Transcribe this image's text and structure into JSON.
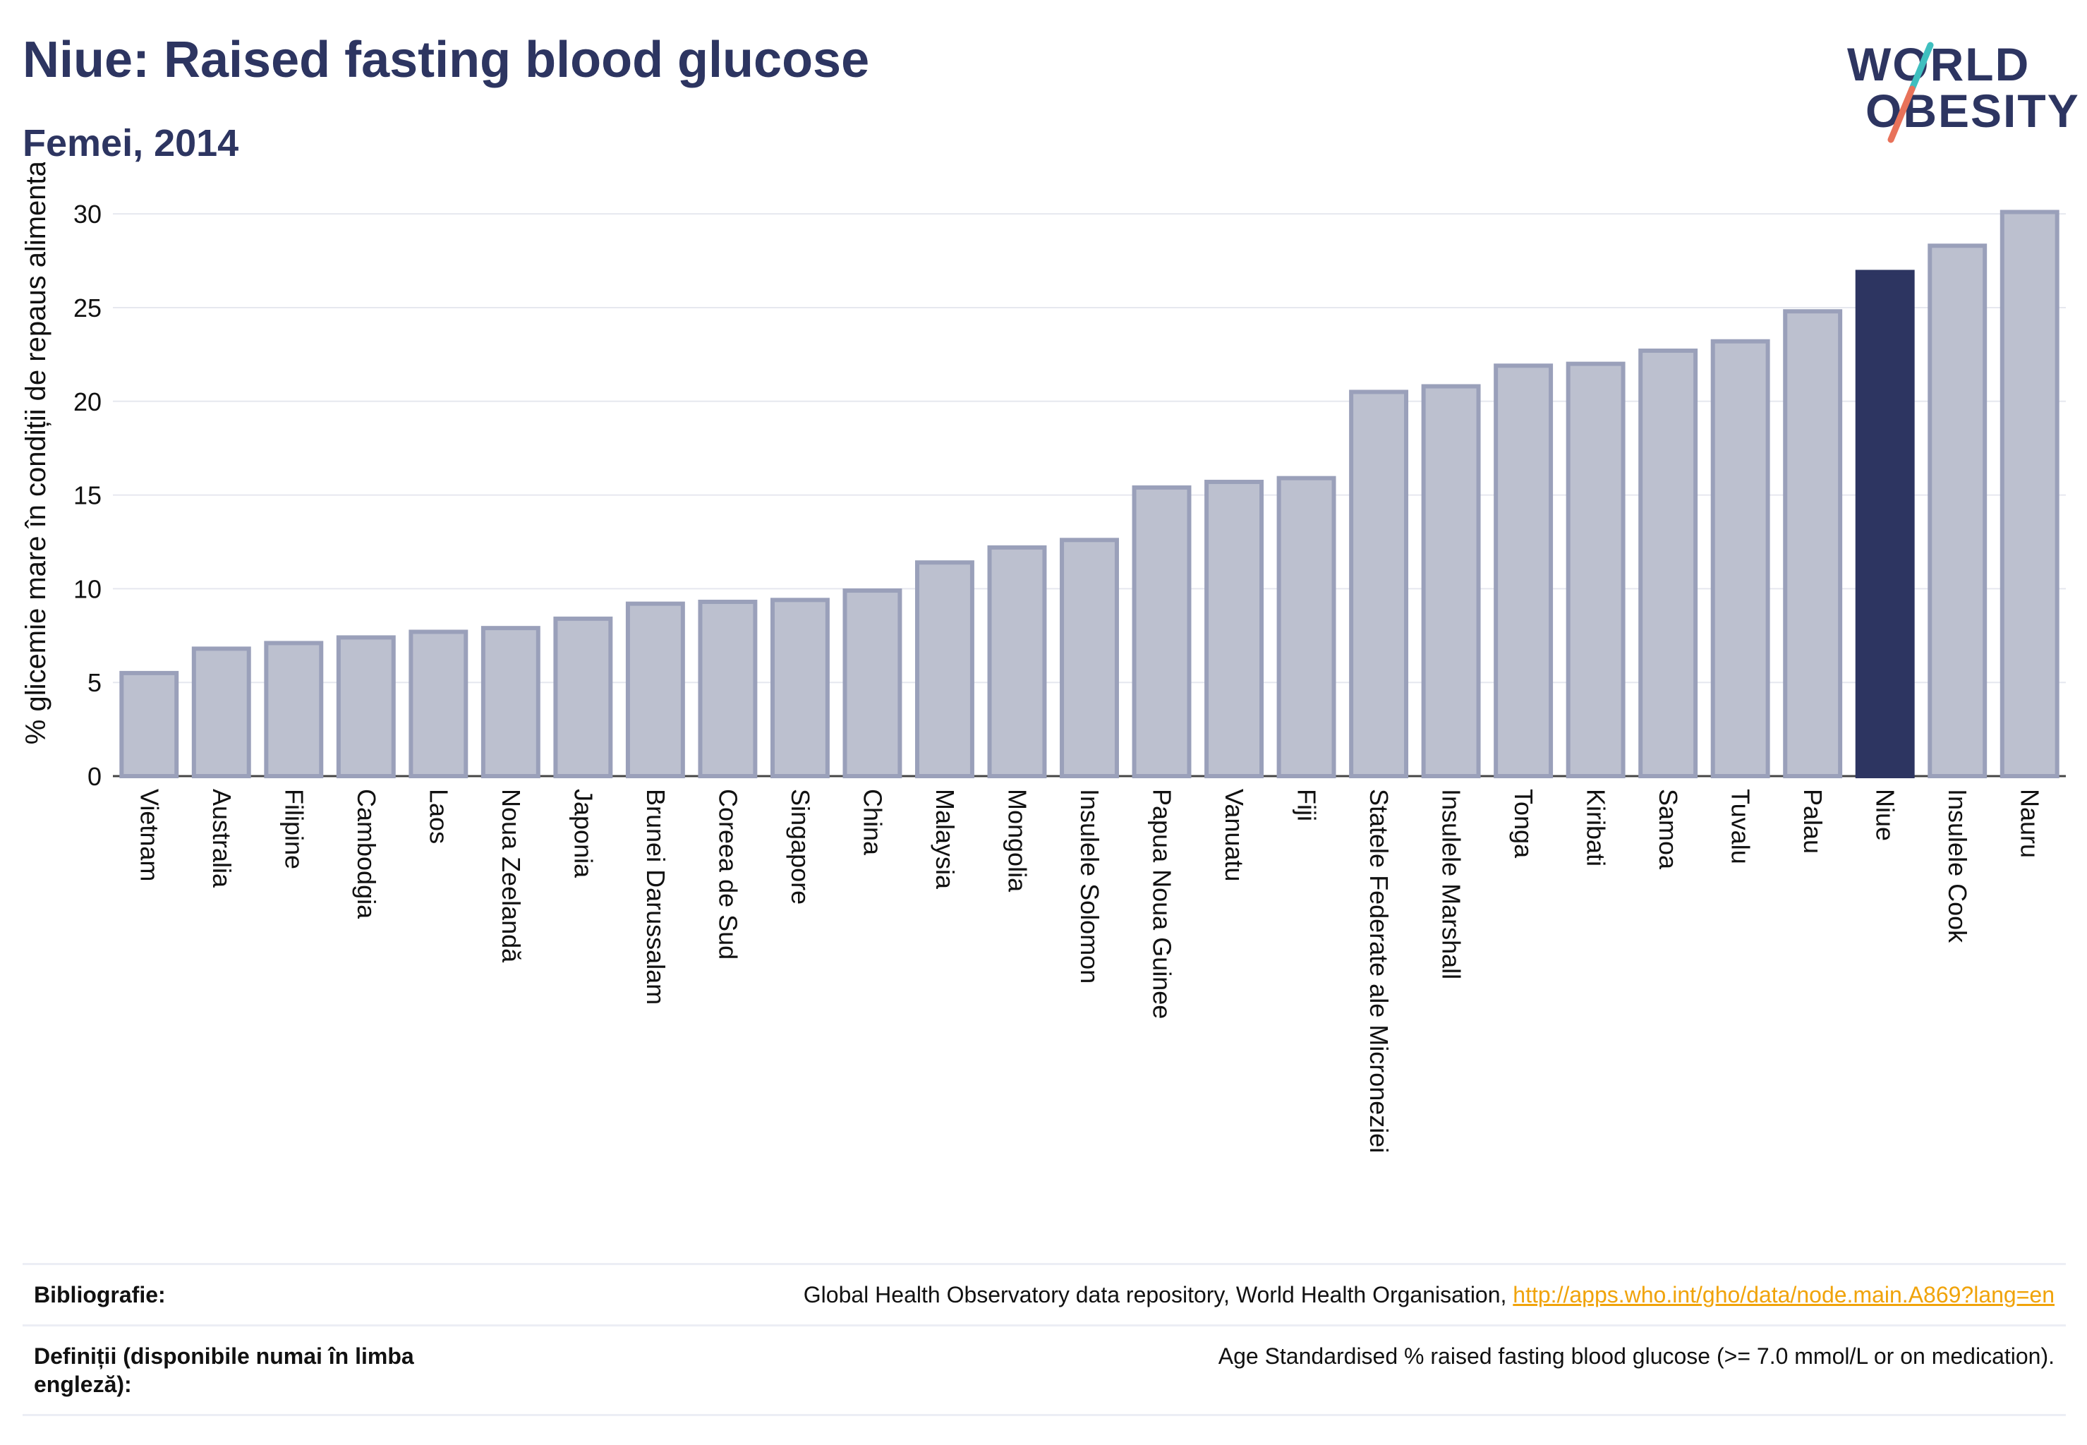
{
  "header": {
    "title": "Niue: Raised fasting blood glucose",
    "subtitle": "Femei, 2014"
  },
  "logo": {
    "line1": "WORLD",
    "line2": "OBESITY",
    "slash_colors": [
      "#3fbfbf",
      "#e8725a"
    ]
  },
  "colors": {
    "bar": "#bcc0cf",
    "bar_border": "#9aa0ba",
    "highlight": "#2d3561",
    "grid": "#e6e8ef",
    "axis_text": "#111111",
    "link": "#f0a30a"
  },
  "chart_data": {
    "type": "bar",
    "title": "Niue: Raised fasting blood glucose",
    "subtitle": "Femei, 2014",
    "xlabel": "",
    "ylabel": "% glicemie mare în condiții de repaus alimentar",
    "ylim": [
      0,
      32
    ],
    "yticks": [
      0,
      5,
      10,
      15,
      20,
      25,
      30
    ],
    "grid": true,
    "highlight": "Niue",
    "categories": [
      "Vietnam",
      "Australia",
      "Filipine",
      "Cambodgia",
      "Laos",
      "Noua Zeelandă",
      "Japonia",
      "Brunei Darussalam",
      "Coreea de Sud",
      "Singapore",
      "China",
      "Malaysia",
      "Mongolia",
      "Insulele Solomon",
      "Papua Noua Guinee",
      "Vanuatu",
      "Fiji",
      "Statele Federate ale Microneziei",
      "Insulele Marshall",
      "Tonga",
      "Kiribati",
      "Samoa",
      "Tuvalu",
      "Palau",
      "Niue",
      "Insulele Cook",
      "Nauru"
    ],
    "values": [
      5.5,
      6.8,
      7.1,
      7.4,
      7.7,
      7.9,
      8.4,
      9.2,
      9.3,
      9.4,
      9.9,
      11.4,
      12.2,
      12.6,
      15.4,
      15.7,
      15.9,
      20.5,
      20.8,
      21.9,
      22.0,
      22.7,
      23.2,
      24.8,
      26.9,
      28.3,
      30.1
    ]
  },
  "footer": {
    "bibliography_label": "Bibliografie:",
    "bibliography_text": "Global Health Observatory data repository, World Health Organisation,",
    "bibliography_link": "http://apps.who.int/gho/data/node.main.A869?lang=en",
    "definitions_label": "Definiții (disponibile numai în limba engleză):",
    "definitions_text": "Age Standardised % raised fasting blood glucose (>= 7.0 mmol/L or on medication)."
  }
}
